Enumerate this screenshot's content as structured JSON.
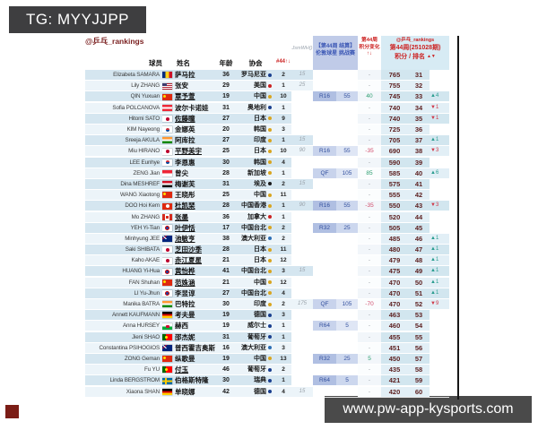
{
  "badges": {
    "tg": "TG: MYYJJPP",
    "site": "www.pw-app-kysports.com"
  },
  "header": {
    "source_tag": "@乒乓_rankings",
    "col_player": "球员",
    "col_name": "姓名",
    "col_age": "年龄",
    "col_assoc": "协会",
    "col_week44_sort": "#44↑↓",
    "col_lastweek": "JsmWH()",
    "event_line1": "【第44周 结算】",
    "event_line2": "伦敦球星 挑战赛",
    "change_line1": "第44周",
    "change_line2": "积分变化",
    "change_line3": "↑↓",
    "right_line1": "@乒乓_rankings",
    "right_line2": "第44周(251028期)",
    "right_line3": "积分 / 排名",
    "right_sort_arrows": "▲▼"
  },
  "colors": {
    "maroon_title": "#7a1f1f",
    "red_header": "#cc2222",
    "blue_header": "#3a56b4",
    "round_navy": "#33509e",
    "positive_green": "#2a9d6e",
    "negative_red": "#d04a6a",
    "score_maroon": "#5c1f1f"
  },
  "rows": [
    {
      "p": "Elizabeta SAMARA",
      "f": "ro",
      "n": "萨马拉",
      "a": "36",
      "c": "罗马尼亚",
      "d": "eu",
      "w": "2",
      "lw": "15",
      "r": "",
      "rp": "",
      "ch": "-",
      "pts": "765",
      "rk": "31",
      "rd": "",
      "dir": ""
    },
    {
      "p": "Lily ZHANG",
      "f": "us",
      "n": "张安",
      "a": "29",
      "c": "美国",
      "d": "am",
      "w": "1",
      "lw": "25",
      "r": "",
      "rp": "",
      "ch": "-",
      "pts": "755",
      "rk": "32",
      "rd": "",
      "dir": ""
    },
    {
      "p": "QIN Yuxuan",
      "f": "cn",
      "n": "覃予萱",
      "u": 1,
      "a": "19",
      "c": "中国",
      "d": "as",
      "w": "10",
      "lw": "",
      "r": "R16",
      "rp": "55",
      "ch": "40",
      "pts": "745",
      "rk": "33",
      "rd": "4",
      "dir": "up"
    },
    {
      "p": "Sofia POLCANOVA",
      "f": "at",
      "n": "波尔卡诺娃",
      "a": "31",
      "c": "奥地利",
      "d": "eu",
      "w": "1",
      "lw": "",
      "r": "",
      "rp": "",
      "ch": "-",
      "pts": "740",
      "rk": "34",
      "rd": "1",
      "dir": "down"
    },
    {
      "p": "Hitomi SATO",
      "f": "jp",
      "n": "佐藤瞳",
      "u": 1,
      "a": "27",
      "c": "日本",
      "d": "as",
      "w": "9",
      "lw": "",
      "r": "",
      "rp": "",
      "ch": "-",
      "pts": "740",
      "rk": "35",
      "rd": "1",
      "dir": "down"
    },
    {
      "p": "KIM Nayeong",
      "f": "kr",
      "n": "金娜英",
      "a": "20",
      "c": "韩国",
      "d": "as",
      "w": "3",
      "lw": "",
      "r": "",
      "rp": "",
      "ch": "-",
      "pts": "725",
      "rk": "36",
      "rd": "",
      "dir": ""
    },
    {
      "p": "Sreeja AKULA",
      "f": "in",
      "n": "阿库拉",
      "a": "27",
      "c": "印度",
      "d": "as",
      "w": "1",
      "lw": "15",
      "r": "",
      "rp": "",
      "ch": "-",
      "pts": "705",
      "rk": "37",
      "rd": "1",
      "dir": "up"
    },
    {
      "p": "Miu HIRANO",
      "f": "jp",
      "n": "平野美宇",
      "u": 1,
      "a": "25",
      "c": "日本",
      "d": "as",
      "w": "10",
      "lw": "90",
      "r": "R16",
      "rp": "55",
      "ch": "-35",
      "pts": "690",
      "rk": "38",
      "rd": "3",
      "dir": "down"
    },
    {
      "p": "LEE Eunhye",
      "f": "kr",
      "n": "李恩惠",
      "a": "30",
      "c": "韩国",
      "d": "as",
      "w": "4",
      "lw": "",
      "r": "",
      "rp": "",
      "ch": "-",
      "pts": "590",
      "rk": "39",
      "rd": "",
      "dir": ""
    },
    {
      "p": "ZENG Jian",
      "f": "sg",
      "n": "曾尖",
      "a": "28",
      "c": "新加坡",
      "d": "as",
      "w": "1",
      "lw": "",
      "r": "QF",
      "rp": "105",
      "ch": "85",
      "pts": "585",
      "rk": "40",
      "rd": "6",
      "dir": "up"
    },
    {
      "p": "Dina MESHREF",
      "f": "eg",
      "n": "梅谢芙",
      "a": "31",
      "c": "埃及",
      "d": "af",
      "w": "2",
      "lw": "15",
      "r": "",
      "rp": "",
      "ch": "-",
      "pts": "575",
      "rk": "41",
      "rd": "",
      "dir": ""
    },
    {
      "p": "WANG Xiaotong",
      "f": "cn",
      "n": "王晓彤",
      "a": "25",
      "c": "中国",
      "d": "as",
      "w": "11",
      "lw": "",
      "r": "",
      "rp": "",
      "ch": "-",
      "pts": "555",
      "rk": "42",
      "rd": "",
      "dir": ""
    },
    {
      "p": "DOO Hoi Kem",
      "f": "hk",
      "n": "杜凯琹",
      "u": 1,
      "a": "28",
      "c": "中国香港",
      "d": "as",
      "w": "1",
      "lw": "90",
      "r": "R16",
      "rp": "55",
      "ch": "-35",
      "pts": "550",
      "rk": "43",
      "rd": "3",
      "dir": "down"
    },
    {
      "p": "Mo ZHANG",
      "f": "ca",
      "n": "张墨",
      "u": 1,
      "a": "36",
      "c": "加拿大",
      "d": "am",
      "w": "1",
      "lw": "",
      "r": "",
      "rp": "",
      "ch": "-",
      "pts": "520",
      "rk": "44",
      "rd": "",
      "dir": ""
    },
    {
      "p": "YEH Yi-Tian",
      "f": "tw",
      "n": "叶伊恬",
      "u": 1,
      "a": "17",
      "c": "中国台北",
      "d": "as",
      "w": "2",
      "lw": "",
      "r": "R32",
      "rp": "25",
      "ch": "-",
      "pts": "505",
      "rk": "45",
      "rd": "",
      "dir": ""
    },
    {
      "p": "Minhyung JEE",
      "f": "au",
      "n": "池敏亨",
      "u": 1,
      "a": "38",
      "c": "澳大利亚",
      "d": "oc",
      "w": "2",
      "lw": "",
      "r": "",
      "rp": "",
      "ch": "-",
      "pts": "485",
      "rk": "46",
      "rd": "1",
      "dir": "up"
    },
    {
      "p": "Saki SHIBATA",
      "f": "jp",
      "n": "芝田沙季",
      "u": 1,
      "a": "28",
      "c": "日本",
      "d": "as",
      "w": "11",
      "lw": "",
      "r": "",
      "rp": "",
      "ch": "-",
      "pts": "480",
      "rk": "47",
      "rd": "1",
      "dir": "up"
    },
    {
      "p": "Kaho AKAE",
      "f": "jp",
      "n": "赤江夏星",
      "u": 1,
      "a": "21",
      "c": "日本",
      "d": "as",
      "w": "12",
      "lw": "",
      "r": "",
      "rp": "",
      "ch": "-",
      "pts": "479",
      "rk": "48",
      "rd": "1",
      "dir": "up"
    },
    {
      "p": "HUANG Yi-Hua",
      "f": "tw",
      "n": "黄怡桦",
      "u": 1,
      "a": "41",
      "c": "中国台北",
      "d": "as",
      "w": "3",
      "lw": "15",
      "r": "",
      "rp": "",
      "ch": "-",
      "pts": "475",
      "rk": "49",
      "rd": "1",
      "dir": "up"
    },
    {
      "p": "FAN Shuhan",
      "f": "cn",
      "n": "范姝涵",
      "u": 1,
      "a": "21",
      "c": "中国",
      "d": "as",
      "w": "12",
      "lw": "",
      "r": "",
      "rp": "",
      "ch": "-",
      "pts": "470",
      "rk": "50",
      "rd": "1",
      "dir": "up"
    },
    {
      "p": "LI Yu-Jhun",
      "f": "tw",
      "n": "李昱谆",
      "a": "27",
      "c": "中国台北",
      "d": "as",
      "w": "4",
      "lw": "",
      "r": "",
      "rp": "",
      "ch": "-",
      "pts": "470",
      "rk": "51",
      "rd": "1",
      "dir": "up"
    },
    {
      "p": "Manika BATRA",
      "f": "in",
      "n": "巴特拉",
      "a": "30",
      "c": "印度",
      "d": "as",
      "w": "2",
      "lw": "175",
      "r": "QF",
      "rp": "105",
      "ch": "-70",
      "pts": "470",
      "rk": "52",
      "rd": "9",
      "dir": "down"
    },
    {
      "p": "Annett KAUFMANN",
      "f": "de",
      "n": "考夫曼",
      "a": "19",
      "c": "德国",
      "d": "eu",
      "w": "3",
      "lw": "",
      "r": "",
      "rp": "",
      "ch": "-",
      "pts": "463",
      "rk": "53",
      "rd": "",
      "dir": ""
    },
    {
      "p": "Anna HURSEY",
      "f": "wls",
      "n": "赫西",
      "a": "19",
      "c": "威尔士",
      "d": "eu",
      "w": "1",
      "lw": "",
      "r": "R64",
      "rp": "5",
      "ch": "-",
      "pts": "460",
      "rk": "54",
      "rd": "",
      "dir": ""
    },
    {
      "p": "Jieni SHAO",
      "f": "pt",
      "n": "邵杰妮",
      "a": "31",
      "c": "葡萄牙",
      "d": "eu",
      "w": "1",
      "lw": "",
      "r": "",
      "rp": "",
      "ch": "-",
      "pts": "455",
      "rk": "55",
      "rd": "",
      "dir": ""
    },
    {
      "p": "Constantina PSIHOGIOS",
      "f": "au",
      "n": "普西霍吉奥斯",
      "a": "16",
      "c": "澳大利亚",
      "d": "oc",
      "w": "3",
      "lw": "",
      "r": "",
      "rp": "",
      "ch": "-",
      "pts": "451",
      "rk": "56",
      "rd": "",
      "dir": ""
    },
    {
      "p": "ZONG Geman",
      "f": "cn",
      "n": "纵歌曼",
      "a": "19",
      "c": "中国",
      "d": "as",
      "w": "13",
      "lw": "",
      "r": "R32",
      "rp": "25",
      "ch": "5",
      "pts": "450",
      "rk": "57",
      "rd": "",
      "dir": ""
    },
    {
      "p": "Fu YU",
      "f": "pt",
      "n": "付玉",
      "u": 1,
      "a": "46",
      "c": "葡萄牙",
      "d": "eu",
      "w": "2",
      "lw": "",
      "r": "",
      "rp": "",
      "ch": "-",
      "pts": "435",
      "rk": "58",
      "rd": "",
      "dir": ""
    },
    {
      "p": "Linda BERGSTROM",
      "f": "se",
      "n": "伯格斯特隆",
      "a": "30",
      "c": "瑞典",
      "d": "eu",
      "w": "1",
      "lw": "",
      "r": "R64",
      "rp": "5",
      "ch": "-",
      "pts": "421",
      "rk": "59",
      "rd": "",
      "dir": ""
    },
    {
      "p": "Xiaona SHAN",
      "f": "de",
      "n": "单晓娜",
      "a": "42",
      "c": "德国",
      "d": "eu",
      "w": "4",
      "lw": "15",
      "r": "",
      "rp": "",
      "ch": "-",
      "pts": "420",
      "rk": "60",
      "rd": "",
      "dir": ""
    }
  ]
}
